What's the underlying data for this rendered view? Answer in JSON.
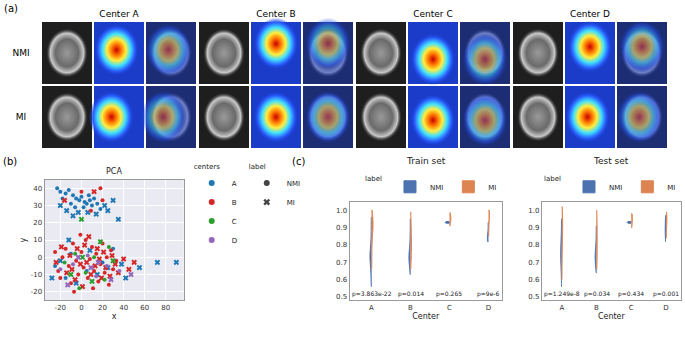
{
  "panel_a": {
    "label": "(a)",
    "columns": [
      "Center A",
      "Center B",
      "Center C",
      "Center D"
    ],
    "rows": [
      "NMI",
      "MI"
    ]
  },
  "chart_data": [
    {
      "type": "scatter",
      "panel": "(b)",
      "title": "PCA",
      "x_label": "x",
      "y_label": "y",
      "xlim": [
        -35,
        97
      ],
      "xticks": [
        -20,
        0,
        20,
        40,
        60,
        80
      ],
      "ylim": [
        -25,
        45
      ],
      "yticks": [
        -20,
        -10,
        0,
        10,
        20,
        30,
        40
      ],
      "grid": true,
      "legend_title": "centers",
      "marker_legend_title": "label",
      "markers": [
        {
          "name": "NMI",
          "marker": "circle",
          "color": "#444444"
        },
        {
          "name": "MI",
          "marker": "x",
          "color": "#444444"
        }
      ],
      "series": [
        {
          "name": "A",
          "color": "#1f77b4",
          "points": {
            "NMI": {
              "x": [
                -23,
                -20,
                -15,
                -12,
                -8,
                -5,
                -2,
                0,
                3,
                5,
                8,
                10,
                12,
                -18,
                -10,
                2,
                15,
                18,
                -6,
                7,
                -25,
                -10,
                5,
                20,
                -15,
                30
              ],
              "y": [
                40,
                38,
                37,
                39,
                36,
                34,
                33,
                35,
                32,
                31,
                33,
                30,
                34,
                34,
                31,
                29,
                31,
                28,
                29,
                36,
                -5,
                2,
                -8,
                -3,
                -12,
                5
              ]
            },
            "MI": {
              "x": [
                -20,
                -14,
                -3,
                6,
                14,
                22,
                25,
                30,
                35,
                -8,
                -28,
                -20,
                -5,
                8,
                15,
                25,
                38,
                42,
                55,
                72,
                90,
                -12
              ],
              "y": [
                30,
                27,
                26,
                26,
                25,
                30,
                27,
                33,
                22,
                24,
                -12,
                -2,
                -15,
                4,
                -10,
                -6,
                -4,
                -12,
                -6,
                -3,
                -3,
                10
              ]
            }
          }
        },
        {
          "name": "B",
          "color": "#d62728",
          "points": {
            "NMI": {
              "x": [
                0,
                18,
                9,
                20,
                -22,
                -18,
                -15,
                -12,
                -10,
                -8,
                -5,
                -3,
                0,
                2,
                4,
                6,
                8,
                10,
                12,
                14,
                16,
                18,
                20,
                22,
                24,
                26,
                28,
                30,
                -25,
                -20,
                -1,
                11,
                33,
                -7
              ],
              "y": [
                38,
                40,
                27,
                33,
                -8,
                0,
                5,
                -5,
                -15,
                8,
                -2,
                -10,
                3,
                -6,
                10,
                -12,
                -1,
                6,
                -8,
                2,
                -14,
                -4,
                8,
                -9,
                0,
                -16,
                4,
                -7,
                3,
                -12,
                13,
                -18,
                -2,
                -20
              ]
            },
            "MI": {
              "x": [
                12,
                -16,
                -24,
                -19,
                -14,
                -11,
                -6,
                -4,
                -1,
                1,
                3,
                5,
                7,
                9,
                13,
                15,
                17,
                19,
                21,
                23,
                27,
                29,
                32,
                35,
                40,
                45,
                50,
                -9
              ],
              "y": [
                38,
                33,
                -3,
                6,
                -9,
                1,
                -13,
                5,
                -4,
                -17,
                7,
                -3,
                12,
                -10,
                -5,
                5,
                -1,
                -12,
                3,
                -6,
                -11,
                1,
                -4,
                -9,
                -1,
                -7,
                -3,
                -7
              ]
            }
          }
        },
        {
          "name": "C",
          "color": "#2ca02c",
          "points": {
            "NMI": {
              "x": [
                -16,
                -6,
                4,
                12,
                22,
                -2,
                26
              ],
              "y": [
                -3,
                2,
                -9,
                0,
                -13,
                -18,
                6
              ]
            },
            "MI": {
              "x": [
                -10,
                1,
                10,
                18,
                30,
                0
              ],
              "y": [
                -10,
                0,
                -14,
                9,
                -2,
                22
              ]
            }
          }
        },
        {
          "name": "D",
          "color": "#9467bd",
          "points": {
            "NMI": {
              "x": [
                -20,
                -8,
                6,
                14,
                24,
                36
              ],
              "y": [
                -7,
                -4,
                1,
                -11,
                -5,
                -8
              ]
            },
            "MI": {
              "x": [
                -13,
                -3,
                9,
                16,
                28,
                47
              ],
              "y": [
                -16,
                0,
                -6,
                -3,
                -13,
                -10
              ]
            }
          }
        }
      ]
    },
    {
      "type": "violin",
      "panel": "(c)",
      "title": "Train set",
      "x_label": "Center",
      "categories": [
        "A",
        "B",
        "C",
        "D"
      ],
      "ylim": [
        0.48,
        1.05
      ],
      "yticks": [
        0.5,
        0.6,
        0.7,
        0.8,
        0.9,
        {
          "value": 1,
          "label": "1.0"
        }
      ],
      "grid": false,
      "legend_title": "label",
      "annotations": [
        "p=3.863e-22",
        "p=0.014",
        "p=0.265",
        "p=9e-6"
      ],
      "series": [
        {
          "name": "NMI",
          "color": "#4c72b0",
          "values": [
            [
              0.56,
              0.62,
              0.66,
              0.69,
              0.71,
              0.72,
              0.73,
              0.74,
              0.75,
              0.76,
              0.78,
              0.82,
              0.88,
              0.96
            ],
            [
              0.63,
              0.68,
              0.7,
              0.71,
              0.72,
              0.73,
              0.74,
              0.75,
              0.77,
              0.8,
              0.86,
              0.95
            ],
            [
              0.925,
              0.93,
              0.935
            ],
            [
              0.82,
              0.83,
              0.84,
              0.86,
              0.93
            ]
          ]
        },
        {
          "name": "MI",
          "color": "#dd8452",
          "values": [
            [
              0.66,
              0.74,
              0.8,
              0.84,
              0.87,
              0.89,
              0.9,
              0.91,
              0.92,
              0.93,
              0.94,
              0.95,
              0.97,
              1.0
            ],
            [
              0.66,
              0.72,
              0.75,
              0.77,
              0.79,
              0.8,
              0.82,
              0.84,
              0.87,
              0.9,
              0.94,
              0.99
            ],
            [
              0.91,
              0.94,
              0.95,
              0.96,
              0.985
            ],
            [
              0.85,
              0.92,
              0.96,
              0.97,
              0.98,
              1.0
            ]
          ]
        }
      ]
    },
    {
      "type": "violin",
      "title": "Test set",
      "x_label": "Center",
      "categories": [
        "A",
        "B",
        "C",
        "D"
      ],
      "ylim": [
        0.48,
        1.05
      ],
      "yticks": [
        0.5,
        0.6,
        0.7,
        0.8,
        0.9,
        {
          "value": 1,
          "label": "1.0"
        }
      ],
      "grid": false,
      "legend_title": "label",
      "annotations": [
        "p=1.249e-8",
        "p=0.034",
        "p=0.434",
        "p=0.001"
      ],
      "series": [
        {
          "name": "NMI",
          "color": "#4c72b0",
          "values": [
            [
              0.56,
              0.63,
              0.67,
              0.7,
              0.72,
              0.74,
              0.75,
              0.76,
              0.78,
              0.8,
              0.83,
              0.88,
              0.95
            ],
            [
              0.64,
              0.68,
              0.7,
              0.72,
              0.73,
              0.74,
              0.75,
              0.76,
              0.79,
              0.84,
              0.91
            ],
            [
              0.925,
              0.93,
              0.935
            ],
            [
              0.82,
              0.86,
              0.88,
              0.9,
              0.93,
              0.97
            ]
          ]
        },
        {
          "name": "MI",
          "color": "#dd8452",
          "values": [
            [
              0.6,
              0.7,
              0.76,
              0.8,
              0.84,
              0.87,
              0.89,
              0.91,
              0.92,
              0.94,
              0.96,
              0.98,
              1.02
            ],
            [
              0.66,
              0.7,
              0.74,
              0.77,
              0.8,
              0.82,
              0.85,
              0.88,
              0.92,
              0.96,
              1.0
            ],
            [
              0.9,
              0.93,
              0.95,
              0.96,
              0.98
            ],
            [
              0.84,
              0.9,
              0.93,
              0.95,
              0.96,
              0.99
            ]
          ]
        }
      ]
    }
  ]
}
